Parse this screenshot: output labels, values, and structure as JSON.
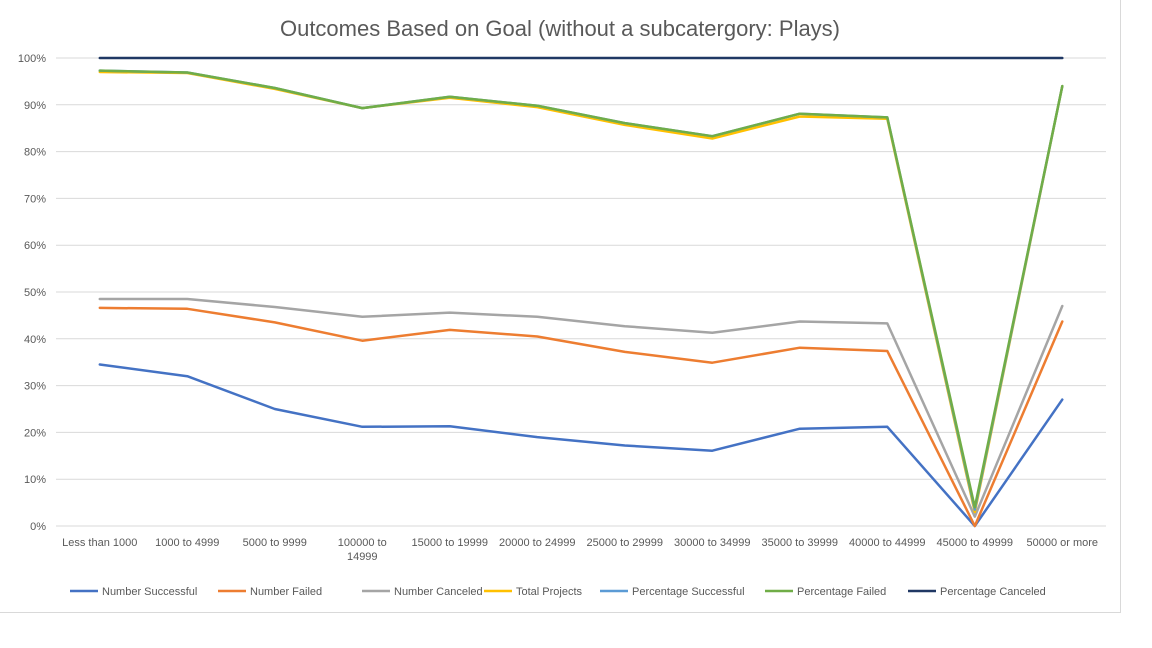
{
  "chart_data": {
    "type": "line",
    "title": "Outcomes Based on Goal (without a subcatergory: Plays)",
    "xlabel": "",
    "ylabel": "",
    "ylim": [
      0,
      1
    ],
    "yticks": [
      "0%",
      "10%",
      "20%",
      "30%",
      "40%",
      "50%",
      "60%",
      "70%",
      "80%",
      "90%",
      "100%"
    ],
    "categories": [
      [
        "Less than 1000"
      ],
      [
        "1000 to 4999"
      ],
      [
        "5000 to 9999"
      ],
      [
        "100000 to",
        "14999"
      ],
      [
        "15000 to 19999"
      ],
      [
        "20000 to 24999"
      ],
      [
        "25000 to 29999"
      ],
      [
        "30000 to 34999"
      ],
      [
        "35000 to 39999"
      ],
      [
        "40000 to 44999"
      ],
      [
        "45000 to 49999"
      ],
      [
        "50000 or more"
      ]
    ],
    "grid": true,
    "legend_position": "bottom",
    "series": [
      {
        "name": "Number Successful",
        "color": "#4472c4",
        "values": [
          0.345,
          0.32,
          0.25,
          0.212,
          0.213,
          0.19,
          0.172,
          0.161,
          0.208,
          0.212,
          0.0,
          0.27
        ]
      },
      {
        "name": "Number Failed",
        "color": "#ed7d31",
        "values": [
          0.466,
          0.464,
          0.435,
          0.396,
          0.419,
          0.405,
          0.372,
          0.349,
          0.381,
          0.374,
          0.0,
          0.437
        ]
      },
      {
        "name": "Number Canceled",
        "color": "#a5a5a5",
        "values": [
          0.485,
          0.485,
          0.468,
          0.447,
          0.456,
          0.447,
          0.427,
          0.413,
          0.437,
          0.433,
          0.02,
          0.47
        ]
      },
      {
        "name": "Total Projects",
        "color": "#ffc000",
        "values": [
          0.97,
          0.968,
          0.934,
          0.893,
          0.915,
          0.895,
          0.857,
          0.828,
          0.875,
          0.87,
          0.03,
          0.94
        ]
      },
      {
        "name": "Percentage Successful",
        "color": "#5b9bd5",
        "values": [
          0.973,
          0.969,
          0.936,
          0.893,
          0.917,
          0.898,
          0.861,
          0.833,
          0.881,
          0.873,
          0.035,
          0.94
        ]
      },
      {
        "name": "Percentage Failed",
        "color": "#70ad47",
        "values": [
          0.973,
          0.969,
          0.936,
          0.893,
          0.917,
          0.898,
          0.861,
          0.833,
          0.881,
          0.873,
          0.04,
          0.94
        ]
      },
      {
        "name": "Percentage Canceled",
        "color": "#203864",
        "values": [
          1.0,
          1.0,
          1.0,
          1.0,
          1.0,
          1.0,
          1.0,
          1.0,
          1.0,
          1.0,
          1.0,
          1.0
        ]
      }
    ]
  }
}
